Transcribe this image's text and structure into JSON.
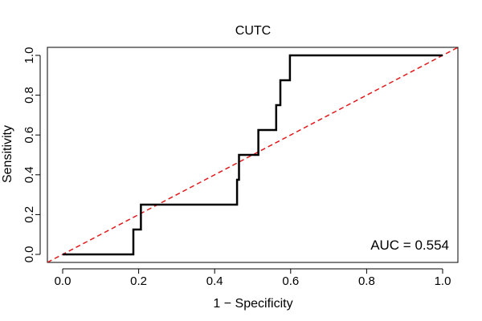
{
  "chart_data": {
    "type": "line",
    "title": "CUTC",
    "xlabel": "1 − Specificity",
    "ylabel": "Sensitivity",
    "xlim": [
      0,
      1
    ],
    "ylim": [
      0,
      1
    ],
    "x_ticks": [
      0.0,
      0.2,
      0.4,
      0.6,
      0.8,
      1.0
    ],
    "x_tick_labels": [
      "0.0",
      "0.2",
      "0.4",
      "0.6",
      "0.8",
      "1.0"
    ],
    "y_ticks": [
      0.0,
      0.2,
      0.4,
      0.6,
      0.8,
      1.0
    ],
    "y_tick_labels": [
      "0.0",
      "0.2",
      "0.4",
      "0.6",
      "0.8",
      "1.0"
    ],
    "grid": false,
    "series": [
      {
        "name": "ROC curve",
        "color": "#000000",
        "style": "solid",
        "x": [
          0.0,
          0.186,
          0.186,
          0.206,
          0.206,
          0.459,
          0.459,
          0.464,
          0.464,
          0.515,
          0.515,
          0.562,
          0.562,
          0.573,
          0.573,
          0.598,
          0.598,
          1.0
        ],
        "y": [
          0.0,
          0.0,
          0.125,
          0.125,
          0.25,
          0.25,
          0.375,
          0.375,
          0.5,
          0.5,
          0.625,
          0.625,
          0.75,
          0.75,
          0.875,
          0.875,
          1.0,
          1.0
        ]
      },
      {
        "name": "Reference line",
        "color": "#e31a1c",
        "style": "dashed",
        "x": [
          -0.04,
          1.04
        ],
        "y": [
          -0.04,
          1.04
        ]
      }
    ],
    "annotations": [
      {
        "text": "AUC = 0.554",
        "position": "bottom-right"
      }
    ]
  }
}
